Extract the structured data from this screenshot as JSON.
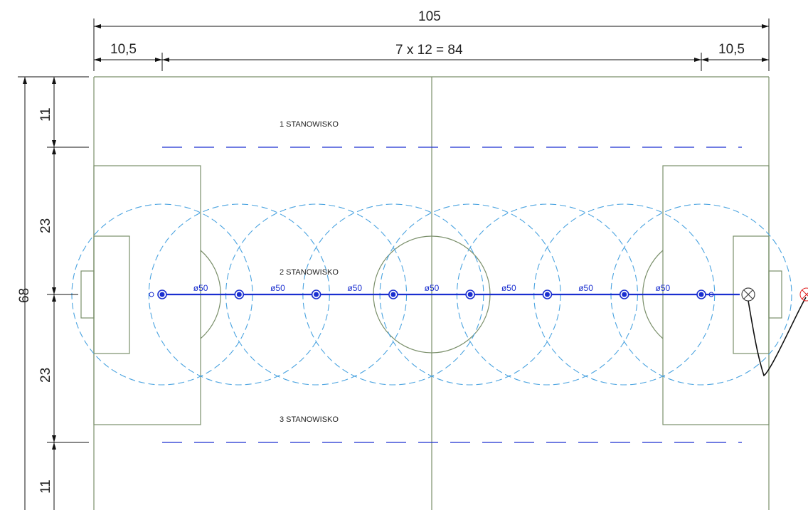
{
  "dimensions": {
    "total_length": "105",
    "left_margin": "10,5",
    "middle_span": "7 x 12 = 84",
    "right_margin": "10,5",
    "total_width": "68",
    "segment_top": "11",
    "segment_upper": "23",
    "segment_lower": "23",
    "segment_bottom": "11"
  },
  "stations": [
    "1 STANOWISKO",
    "2 STANOWISKO",
    "3 STANOWISKO"
  ],
  "sprinklers": {
    "count": 8,
    "pipe_label": "ø50",
    "pipe_label_count": 7
  },
  "colors": {
    "field_lines": "#7a8f6a",
    "dimension_lines": "#111111",
    "spray_circles": "#4aa3e0",
    "pipe": "#1a2fd0",
    "station_dash": "#1a2fd0",
    "hose": "#111111",
    "valve": "#444444",
    "marker": "#e02020"
  }
}
